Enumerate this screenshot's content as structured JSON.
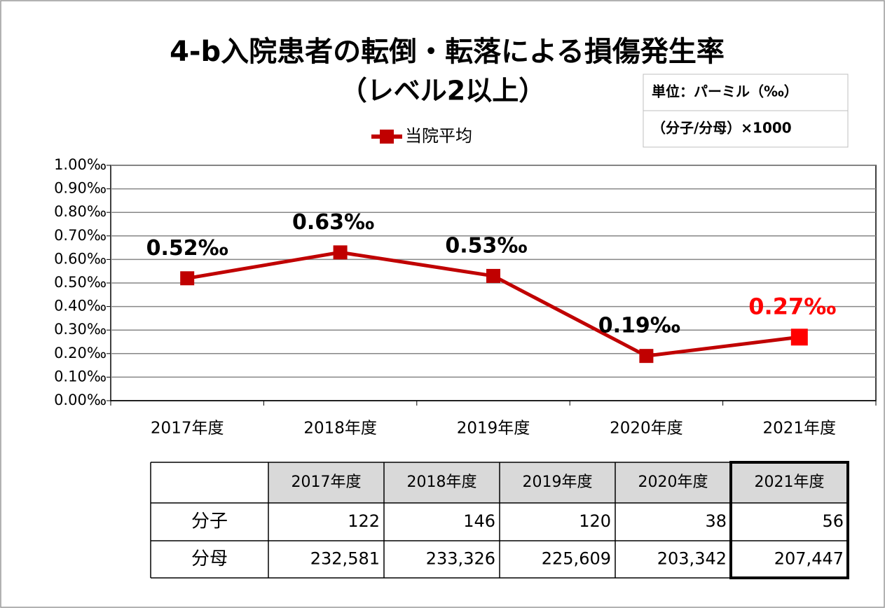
{
  "chart_data": {
    "type": "line",
    "title": "4-b入院患者の転倒・転落による損傷発生率",
    "subtitle": "（レベル2以上）",
    "unit_box": [
      "単位：パーミル（‰）",
      "（分子/分母）×1000"
    ],
    "categories": [
      "2017年度",
      "2018年度",
      "2019年度",
      "2020年度",
      "2021年度"
    ],
    "series": [
      {
        "name": "当院平均",
        "color": "#c00000",
        "values": [
          0.52,
          0.63,
          0.53,
          0.19,
          0.27
        ],
        "value_labels": [
          "0.52‰",
          "0.63‰",
          "0.53‰",
          "0.19‰",
          "0.27‰"
        ],
        "point_colors": [
          "#c00000",
          "#c00000",
          "#c00000",
          "#c00000",
          "#ff0000"
        ],
        "label_colors": [
          "#000000",
          "#000000",
          "#000000",
          "#000000",
          "#ff0000"
        ]
      }
    ],
    "ylim": [
      0,
      1
    ],
    "yticks": [
      {
        "value": 0,
        "label": "0.00‰"
      },
      {
        "value": 0.1,
        "label": "0.10‰"
      },
      {
        "value": 0.2,
        "label": "0.20‰"
      },
      {
        "value": 0.3,
        "label": "0.30‰"
      },
      {
        "value": 0.4,
        "label": "0.40‰"
      },
      {
        "value": 0.5,
        "label": "0.50‰"
      },
      {
        "value": 0.6,
        "label": "0.60‰"
      },
      {
        "value": 0.7,
        "label": "0.70‰"
      },
      {
        "value": 0.8,
        "label": "0.80‰"
      },
      {
        "value": 0.9,
        "label": "0.90‰"
      },
      {
        "value": 1,
        "label": "1.00‰"
      }
    ],
    "grid": true,
    "legend": "top"
  },
  "table": {
    "columns": [
      "2017年度",
      "2018年度",
      "2019年度",
      "2020年度",
      "2021年度"
    ],
    "rows": [
      {
        "label": "分子",
        "values": [
          122,
          146,
          120,
          38,
          56
        ]
      },
      {
        "label": "分母",
        "values": [
          232581,
          233326,
          225609,
          203342,
          207447
        ],
        "value_labels": [
          "232,581",
          "233,326",
          "225,609",
          "203,342",
          "207,447"
        ]
      }
    ]
  }
}
